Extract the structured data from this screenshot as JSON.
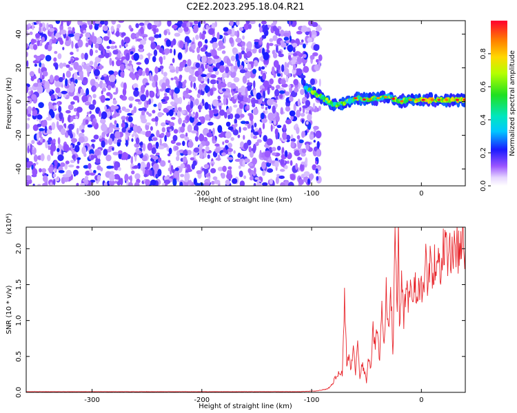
{
  "title": "C2E2.2023.295.18.04.R21",
  "chart_data": [
    {
      "type": "heatmap",
      "xlabel": "Height of straight line (km)",
      "ylabel": "Frequency (Hz)",
      "xlim": [
        -360,
        40
      ],
      "ylim": [
        -50,
        48
      ],
      "xticks": [
        -300,
        -200,
        -100,
        0
      ],
      "xtick_labels": [
        "-300",
        "-200",
        "-100",
        "0"
      ],
      "yticks": [
        -40,
        -20,
        0,
        20,
        40
      ],
      "ytick_labels": [
        "-40",
        "-20",
        "0",
        "20",
        "40"
      ],
      "colorbar": {
        "label": "Normalized spectral amplitude",
        "range": [
          0.0,
          1.0
        ],
        "ticks": [
          0.0,
          0.2,
          0.4,
          0.6,
          0.8
        ],
        "tick_labels": [
          "0.0",
          "0.2",
          "0.4",
          "0.6",
          "0.8"
        ],
        "colormap": "rainbow-white-to-red"
      },
      "regions": [
        {
          "name": "noise",
          "x_range": [
            -360,
            -100
          ],
          "freq_range": [
            -50,
            48
          ],
          "amplitude": [
            0.05,
            0.3
          ]
        },
        {
          "name": "signal",
          "x_range": [
            -108,
            40
          ],
          "freq_center": 0,
          "amplitude": [
            0.1,
            0.9
          ]
        }
      ],
      "signal_track": [
        {
          "x": -108,
          "freq": 10
        },
        {
          "x": -100,
          "freq": 6
        },
        {
          "x": -90,
          "freq": 2
        },
        {
          "x": -80,
          "freq": -2
        },
        {
          "x": -70,
          "freq": -1
        },
        {
          "x": -60,
          "freq": 2
        },
        {
          "x": -50,
          "freq": 1
        },
        {
          "x": -40,
          "freq": 2
        },
        {
          "x": -30,
          "freq": 3
        },
        {
          "x": -20,
          "freq": 0
        },
        {
          "x": -10,
          "freq": 1
        },
        {
          "x": 0,
          "freq": 1
        },
        {
          "x": 10,
          "freq": 1
        },
        {
          "x": 20,
          "freq": 1
        },
        {
          "x": 30,
          "freq": 1
        },
        {
          "x": 40,
          "freq": 1
        }
      ]
    },
    {
      "type": "line",
      "xlabel": "Height of straight line (km)",
      "ylabel": "SNR (10 * v/v)",
      "y_multiplier": "(x10⁴)",
      "xlim": [
        -360,
        40
      ],
      "ylim": [
        0,
        2.3
      ],
      "xticks": [
        -300,
        -200,
        -100,
        0
      ],
      "xtick_labels": [
        "-300",
        "-200",
        "-100",
        "0"
      ],
      "yticks": [
        0.0,
        0.5,
        1.0,
        1.5,
        2.0
      ],
      "ytick_labels": [
        "0.0",
        "0.5",
        "1.0",
        "1.5",
        "2.0"
      ],
      "series": [
        {
          "color": "#e8242a",
          "x": [
            -360,
            -300,
            -200,
            -110,
            -95,
            -85,
            -80,
            -75,
            -72,
            -70,
            -68,
            -66,
            -64,
            -62,
            -60,
            -58,
            -56,
            -54,
            -52,
            -50,
            -48,
            -46,
            -44,
            -42,
            -40,
            -38,
            -36,
            -34,
            -32,
            -30,
            -28,
            -26,
            -24,
            -22,
            -21,
            -20,
            -18,
            -16,
            -14,
            -12,
            -10,
            -8,
            -6,
            -4,
            -2,
            0,
            2,
            4,
            6,
            8,
            10,
            12,
            14,
            16,
            18,
            20,
            22,
            24,
            26,
            28,
            30,
            32,
            34,
            36,
            38,
            40
          ],
          "values": [
            0.01,
            0.01,
            0.01,
            0.01,
            0.02,
            0.05,
            0.15,
            0.3,
            0.25,
            1.35,
            0.4,
            0.55,
            0.3,
            0.7,
            0.25,
            0.65,
            0.2,
            0.4,
            0.3,
            0.15,
            0.5,
            0.35,
            0.9,
            0.6,
            0.95,
            0.4,
            1.2,
            0.6,
            1.6,
            0.8,
            1.55,
            0.5,
            2.1,
            1.1,
            2.3,
            0.9,
            1.7,
            1.0,
            1.55,
            1.2,
            1.4,
            1.2,
            1.6,
            1.3,
            1.45,
            1.5,
            1.35,
            1.9,
            1.5,
            1.75,
            1.6,
            1.85,
            1.7,
            1.85,
            1.8,
            2.0,
            1.9,
            1.95,
            1.95,
            1.98,
            1.97,
            2.0,
            2.0,
            2.02,
            2.0,
            2.03
          ]
        }
      ]
    }
  ]
}
